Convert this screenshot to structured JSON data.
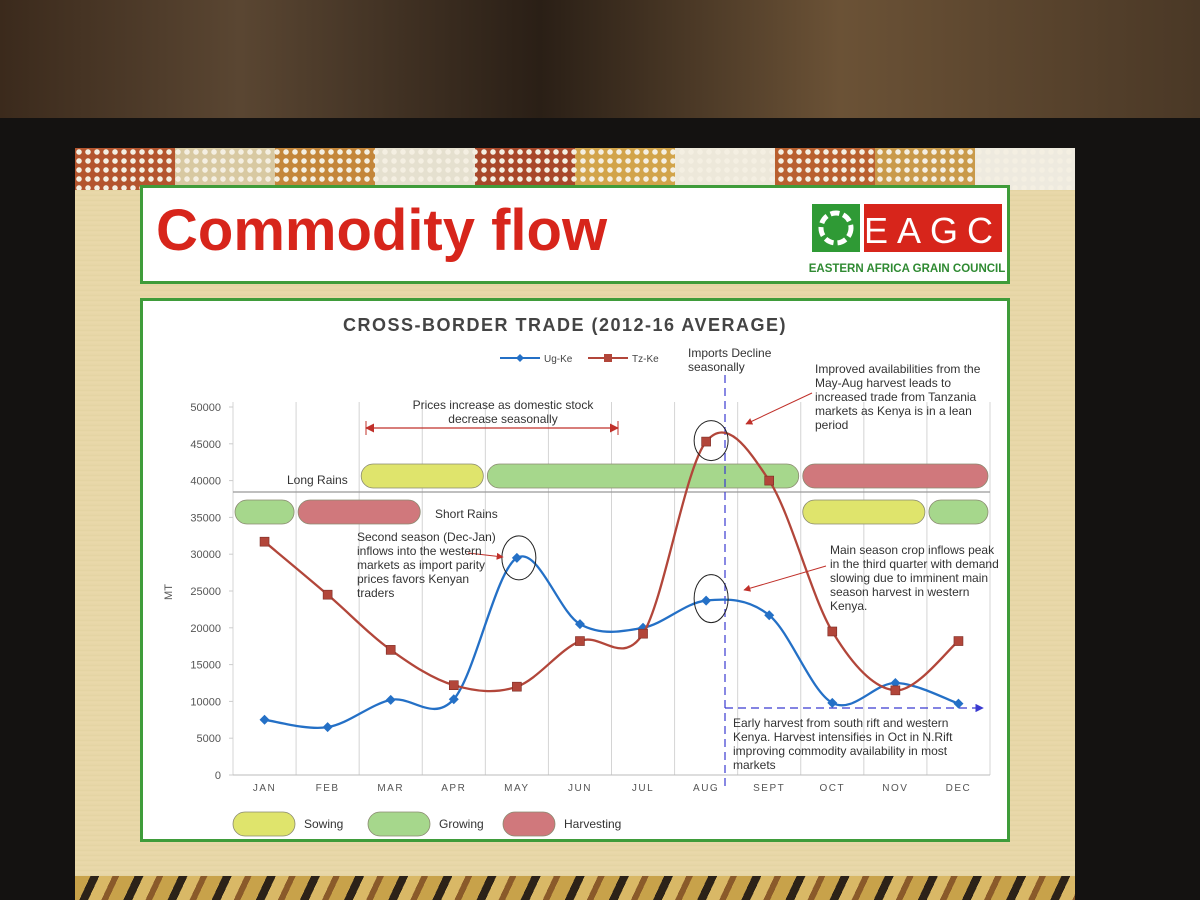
{
  "header": {
    "title": "Commodity flow",
    "logo": "EAGC",
    "organization": "EASTERN AFRICA GRAIN COUNCIL"
  },
  "chart_data": {
    "type": "line",
    "title": "CROSS-BORDER TRADE (2012-16 AVERAGE)",
    "y_label": "MT",
    "categories": [
      "JAN",
      "FEB",
      "MAR",
      "APR",
      "MAY",
      "JUN",
      "JUL",
      "AUG",
      "SEPT",
      "OCT",
      "NOV",
      "DEC"
    ],
    "series": [
      {
        "name": "Ug-Ke",
        "color": "#2470c6",
        "marker": "diamond",
        "values": [
          7500,
          6500,
          10200,
          10300,
          29500,
          20500,
          20000,
          23700,
          21700,
          9800,
          12500,
          9700
        ]
      },
      {
        "name": "Tz-Ke",
        "color": "#b2463a",
        "marker": "square",
        "values": [
          31700,
          24500,
          17000,
          12200,
          12000,
          18200,
          19200,
          45300,
          40000,
          19500,
          11500,
          18200
        ]
      }
    ],
    "ylim": [
      0,
      50000
    ],
    "yticks": [
      0,
      5000,
      10000,
      15000,
      20000,
      25000,
      30000,
      35000,
      40000,
      45000,
      50000
    ],
    "smooth": true,
    "annotations": [
      "Prices increase as domestic stock decrease seasonally",
      "Imports Decline seasonally",
      "Improved availabilities from the May-Aug harvest leads to increased trade from Tanzania markets as Kenya is in a lean period",
      "Second season (Dec-Jan) inflows into the western markets as import parity prices favors Kenyan traders",
      "Main season crop inflows peak in the third quarter with demand slowing due to imminent main season harvest in western Kenya.",
      "Early harvest from south rift and western Kenya. Harvest intensifies in Oct in N.Rift improving commodity availability in most markets"
    ],
    "phases": [
      {
        "name": "Sowing",
        "color": "#dfe46c"
      },
      {
        "name": "Growing",
        "color": "#a6d78c"
      },
      {
        "name": "Harvesting",
        "color": "#d0787c"
      }
    ],
    "seasons": [
      {
        "name": "Long Rains",
        "stages": [
          {
            "phase": "Sowing",
            "from": "MAR",
            "to": "APR"
          },
          {
            "phase": "Growing",
            "from": "MAY",
            "to": "SEPT"
          },
          {
            "phase": "Harvesting",
            "from": "OCT",
            "to": "DEC"
          }
        ]
      },
      {
        "name": "Short Rains",
        "stages": [
          {
            "phase": "Growing",
            "from": "JAN",
            "to": "JAN"
          },
          {
            "phase": "Harvesting",
            "from": "FEB",
            "to": "MAR"
          },
          {
            "phase": "Sowing",
            "from": "OCT",
            "to": "NOV"
          },
          {
            "phase": "Growing",
            "from": "DEC",
            "to": "DEC"
          }
        ]
      }
    ]
  }
}
